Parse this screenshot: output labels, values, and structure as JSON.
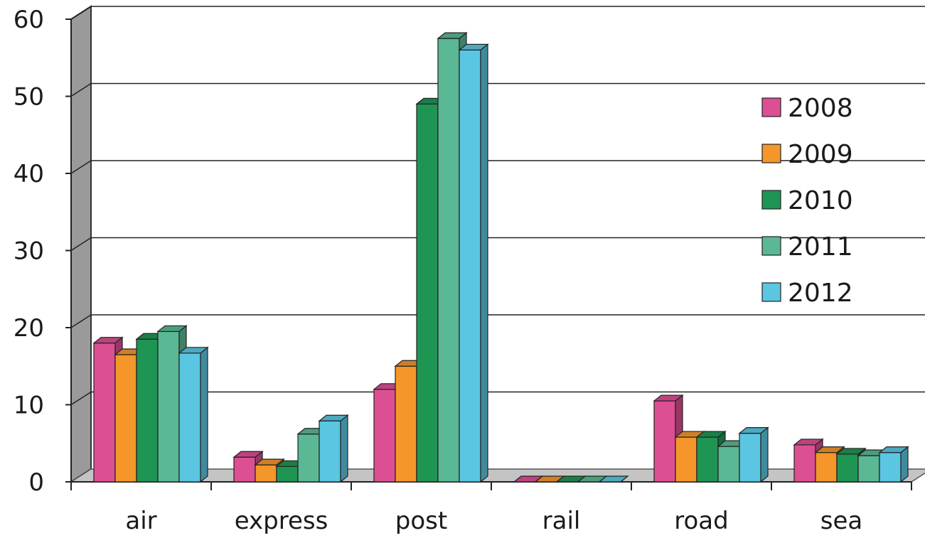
{
  "chart_data": {
    "type": "bar",
    "title": "",
    "xlabel": "",
    "ylabel": "",
    "ylim": [
      0,
      60
    ],
    "yticks": [
      "0",
      "10",
      "20",
      "30",
      "40",
      "50",
      "60"
    ],
    "categories": [
      "air",
      "express",
      "post",
      "rail",
      "road",
      "sea"
    ],
    "series": [
      {
        "name": "2008",
        "color": "#dd4f93",
        "values": [
          18,
          3.2,
          12,
          0,
          10.5,
          4.8
        ]
      },
      {
        "name": "2009",
        "color": "#f4962a",
        "values": [
          16.5,
          2.2,
          15,
          0,
          5.8,
          3.8
        ]
      },
      {
        "name": "2010",
        "color": "#1f9553",
        "values": [
          18.5,
          2.0,
          49,
          0,
          5.8,
          3.6
        ]
      },
      {
        "name": "2011",
        "color": "#5bb894",
        "values": [
          19.5,
          6.2,
          57.5,
          0,
          4.6,
          3.4
        ]
      },
      {
        "name": "2012",
        "color": "#5ac6e2",
        "values": [
          16.7,
          7.9,
          56,
          0,
          6.3,
          3.8
        ]
      }
    ],
    "legend_position": "right",
    "grid": true
  }
}
